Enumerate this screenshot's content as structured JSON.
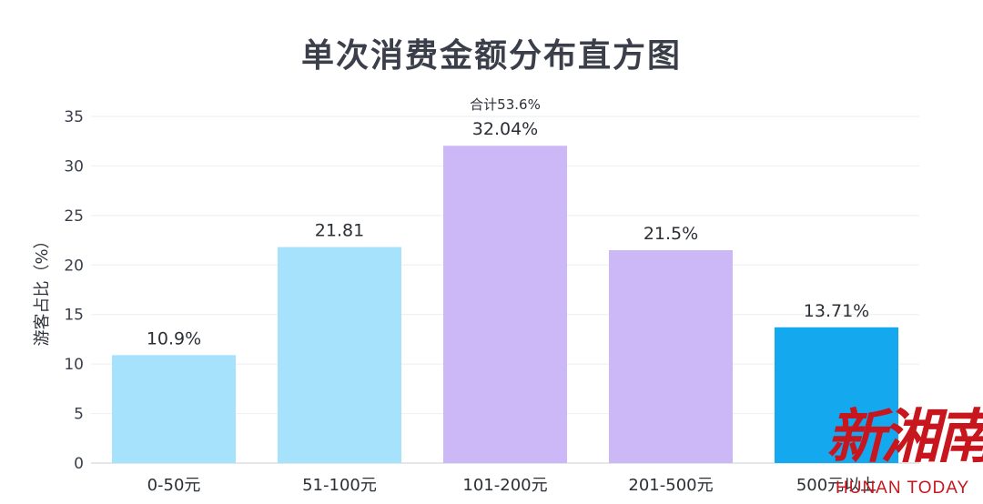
{
  "chart_data": {
    "type": "bar",
    "title": "单次消费金额分布直方图",
    "ylabel": "游客占比（%）",
    "xlabel": "",
    "ylim": [
      0,
      35
    ],
    "yticks": [
      0,
      5,
      10,
      15,
      20,
      25,
      30,
      35
    ],
    "grid": true,
    "categories": [
      "0-50元",
      "51-100元",
      "101-200元",
      "201-500元",
      "500元以上"
    ],
    "values": [
      10.9,
      21.81,
      32.04,
      21.5,
      13.71
    ],
    "value_labels": [
      "10.9%",
      "21.81",
      "32.04%",
      "21.5%",
      "13.71%"
    ],
    "bar_colors": [
      "#a6e2fb",
      "#a6e2fb",
      "#cdb8f7",
      "#cdb8f7",
      "#14a9ef"
    ],
    "annotation": "合计53.6%"
  },
  "watermark": {
    "cn": "新湘南",
    "en": "HUNAN TODAY",
    "color": "#c8161e"
  }
}
